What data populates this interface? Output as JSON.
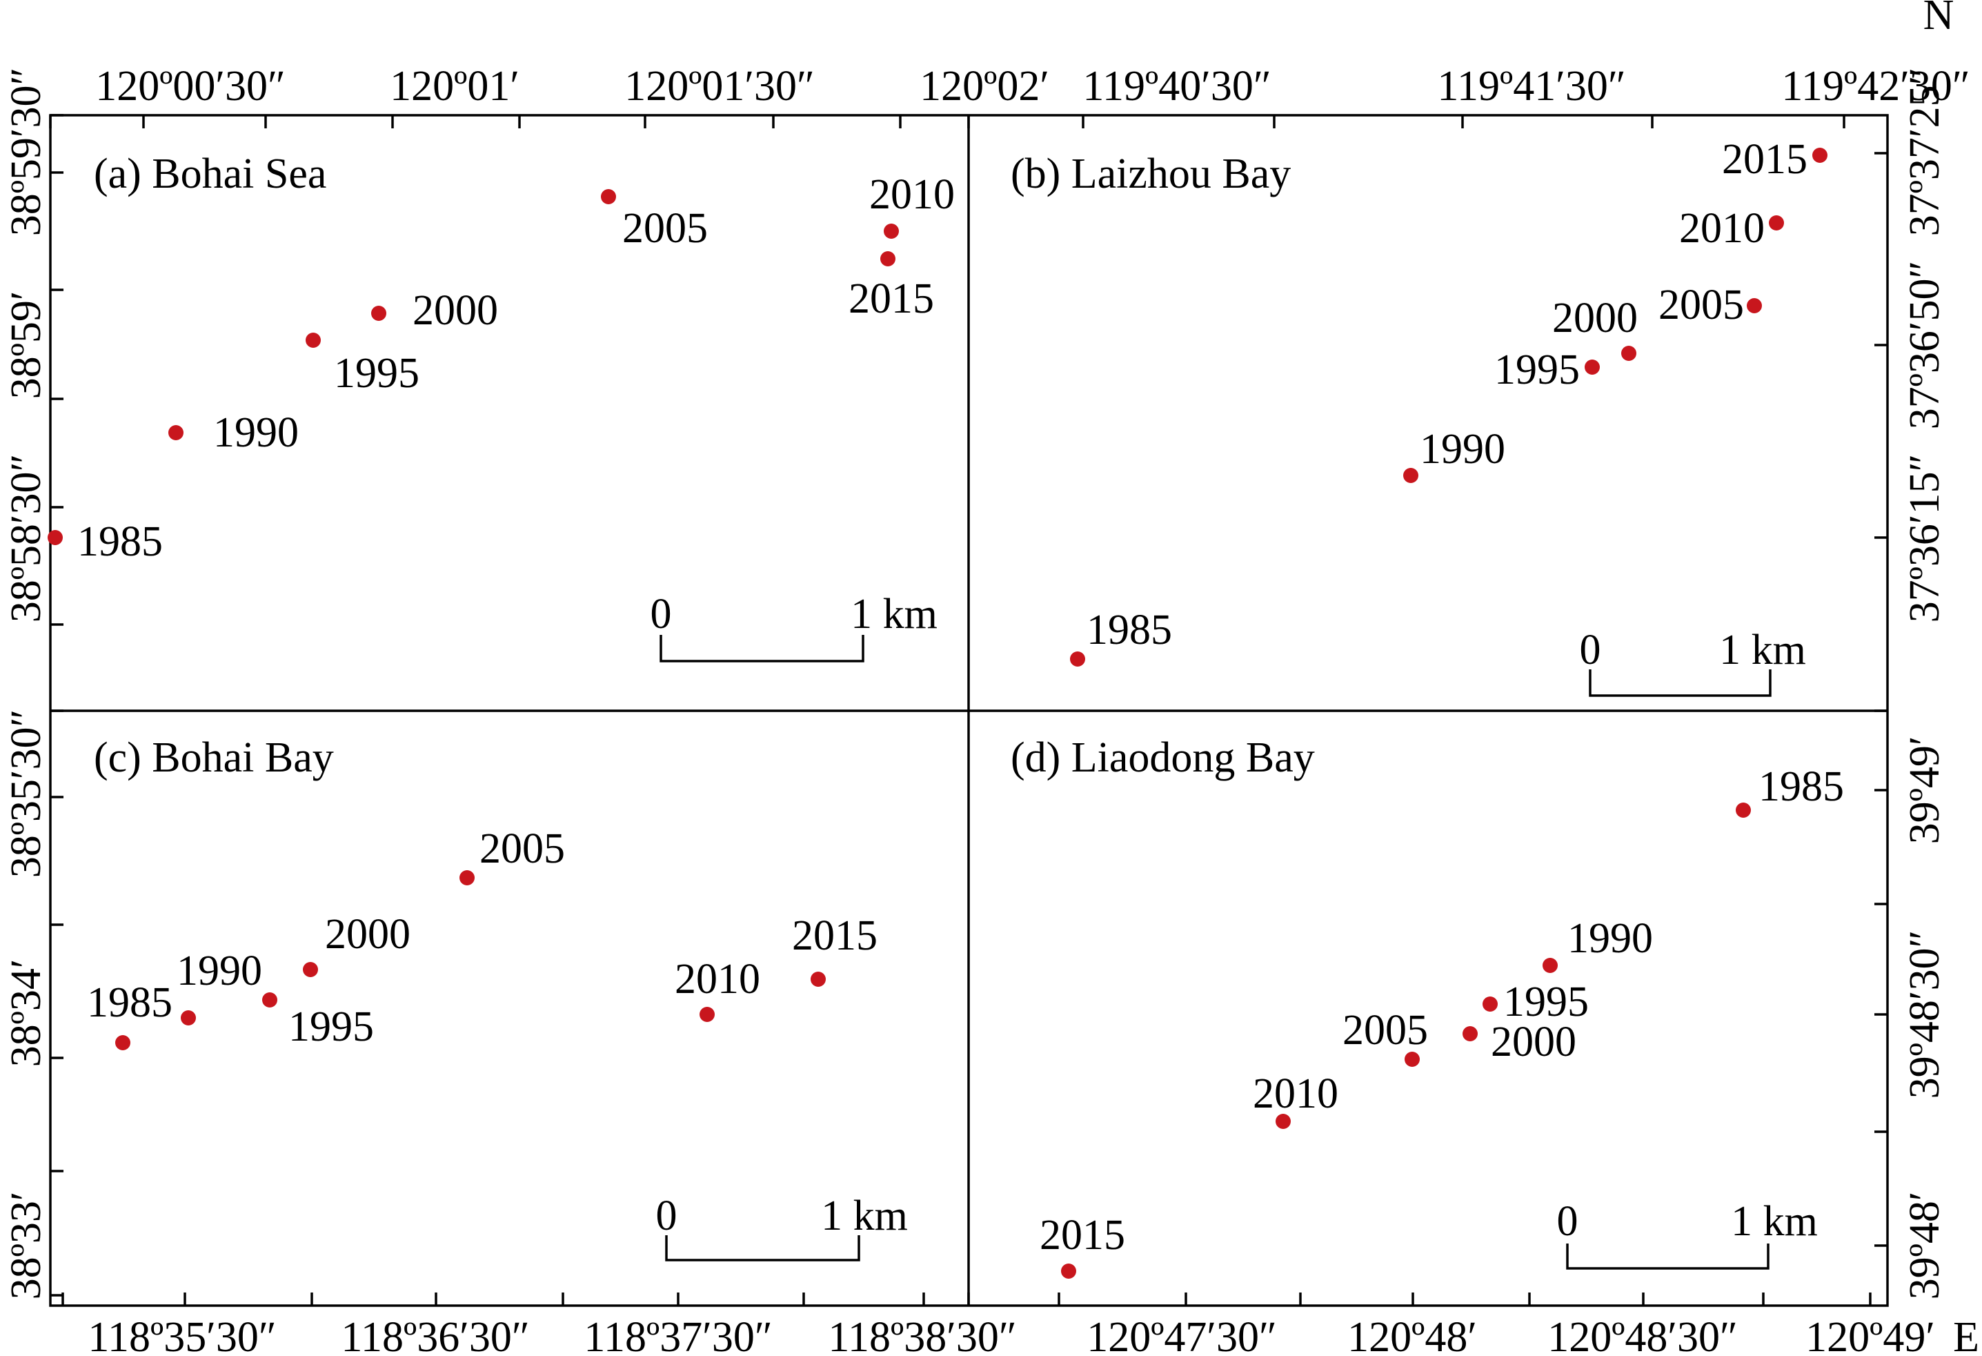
{
  "corner_labels": {
    "north": "N",
    "east": "E"
  },
  "colors": {
    "point": "#c8161d",
    "line": "#000000"
  },
  "scale_bar": {
    "start": "0",
    "end": "1 km"
  },
  "axes": {
    "top_left": [
      "120º00′30″",
      "120º01′",
      "120º01′30″",
      "120º02′"
    ],
    "top_right": [
      "119º40′30″",
      "119º41′30″",
      "119º42′30″"
    ],
    "bottom_left": [
      "118º35′30″",
      "118º36′30″",
      "118º37′30″",
      "118º38′30″"
    ],
    "bottom_right": [
      "120º47′30″",
      "120º48′",
      "120º48′30″",
      "120º49′"
    ],
    "left_top": [
      "38º59′30″",
      "38º59′",
      "38º58′30″"
    ],
    "left_bottom": [
      "38º35′30″",
      "38º34′",
      "38º33′"
    ],
    "right_top": [
      "37º37′25″",
      "37º36′50″",
      "37º36′15″"
    ],
    "right_bottom": [
      "39º49′",
      "39º48′30″",
      "39º48′"
    ]
  },
  "panels": [
    {
      "id": "a",
      "title": "(a) Bohai Sea",
      "points": [
        {
          "year": "1985"
        },
        {
          "year": "1990"
        },
        {
          "year": "1995"
        },
        {
          "year": "2000"
        },
        {
          "year": "2005"
        },
        {
          "year": "2010"
        },
        {
          "year": "2015"
        }
      ]
    },
    {
      "id": "b",
      "title": "(b) Laizhou Bay",
      "points": [
        {
          "year": "1985"
        },
        {
          "year": "1990"
        },
        {
          "year": "1995"
        },
        {
          "year": "2000"
        },
        {
          "year": "2005"
        },
        {
          "year": "2010"
        },
        {
          "year": "2015"
        }
      ]
    },
    {
      "id": "c",
      "title": "(c) Bohai Bay",
      "points": [
        {
          "year": "1985"
        },
        {
          "year": "1990"
        },
        {
          "year": "1995"
        },
        {
          "year": "2000"
        },
        {
          "year": "2005"
        },
        {
          "year": "2010"
        },
        {
          "year": "2015"
        }
      ]
    },
    {
      "id": "d",
      "title": "(d) Liaodong Bay",
      "points": [
        {
          "year": "1985"
        },
        {
          "year": "1990"
        },
        {
          "year": "1995"
        },
        {
          "year": "2000"
        },
        {
          "year": "2005"
        },
        {
          "year": "2010"
        },
        {
          "year": "2015"
        }
      ]
    }
  ]
}
